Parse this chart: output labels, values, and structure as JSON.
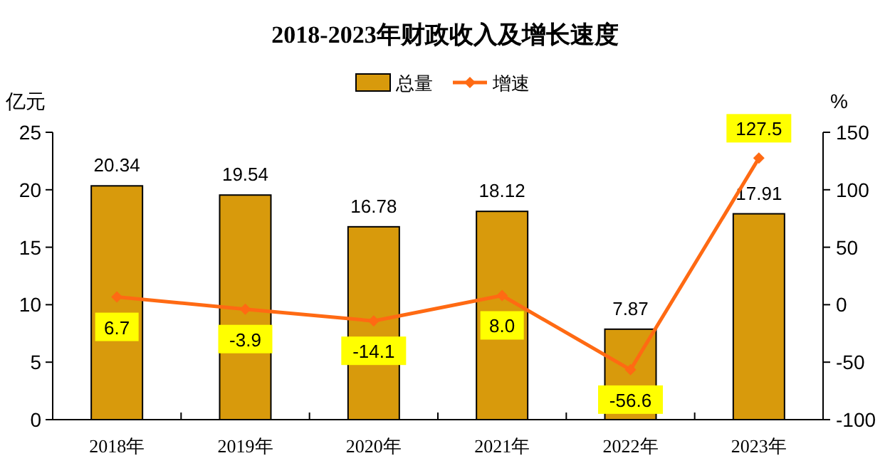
{
  "chart_data": {
    "type": "bar",
    "title": "2018-2023年财政收入及增长速度",
    "ylabel": "亿元",
    "y2label": "%",
    "categories": [
      "2018年",
      "2019年",
      "2020年",
      "2021年",
      "2022年",
      "2023年"
    ],
    "ylim": [
      0,
      25
    ],
    "yticks": [
      0,
      5,
      10,
      15,
      20,
      25
    ],
    "y2lim": [
      -100,
      150
    ],
    "y2ticks": [
      -100,
      -50,
      0,
      50,
      100,
      150
    ],
    "legend": "top",
    "grid": false,
    "data_labels": true,
    "marker": "diamond",
    "series": [
      {
        "name": "总量",
        "color": "#d89a0c",
        "values": [
          20.34,
          19.54,
          16.78,
          18.12,
          7.87,
          17.91
        ]
      },
      {
        "name": "增速",
        "type": "line",
        "axis": "y2",
        "color": "#ff6a13",
        "values": [
          6.7,
          -3.9,
          -14.1,
          8.0,
          -56.6,
          127.5
        ],
        "value_labels": [
          "6.7",
          "-3.9",
          "-14.1",
          "8.0",
          "-56.6",
          "127.5"
        ]
      }
    ]
  }
}
